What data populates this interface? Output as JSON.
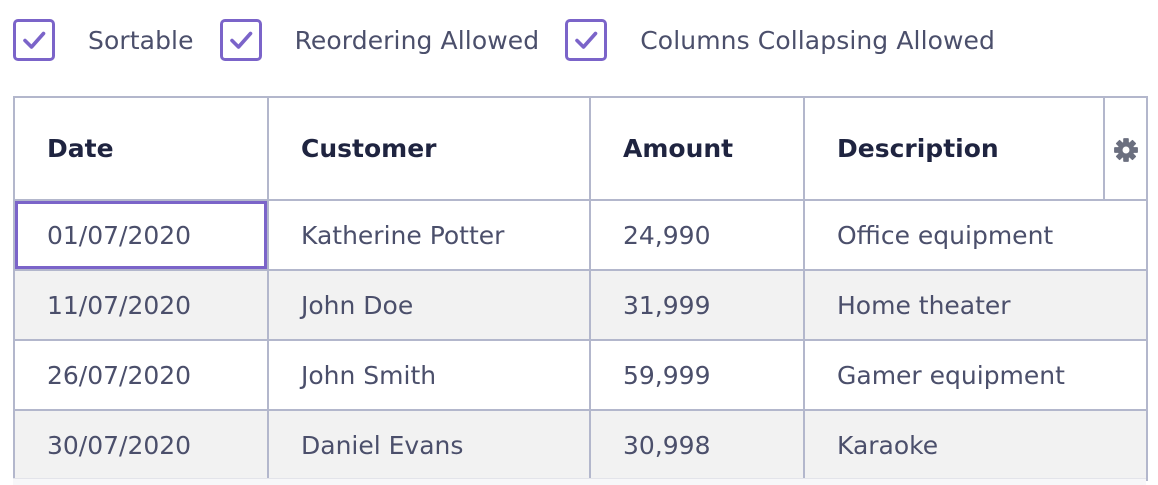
{
  "options": [
    {
      "label": "Sortable",
      "checked": true
    },
    {
      "label": "Reordering Allowed",
      "checked": true
    },
    {
      "label": "Columns Collapsing Allowed",
      "checked": true
    }
  ],
  "columns": [
    "Date",
    "Customer",
    "Amount",
    "Description"
  ],
  "column_menu_icon": "gear-icon",
  "rows": [
    [
      "01/07/2020",
      "Katherine Potter",
      "24,990",
      "Office equipment"
    ],
    [
      "11/07/2020",
      "John Doe",
      "31,999",
      "Home theater"
    ],
    [
      "26/07/2020",
      "John Smith",
      "59,999",
      "Gamer equipment"
    ],
    [
      "30/07/2020",
      "Daniel Evans",
      "30,998",
      "Karaoke"
    ]
  ],
  "colors": {
    "accent": "#7b64c9",
    "border": "#b3b7cc",
    "alt_row": "#f2f2f2",
    "header_text": "#1f2440",
    "body_text": "#4b4f6b",
    "gear": "#6b6f7f"
  }
}
